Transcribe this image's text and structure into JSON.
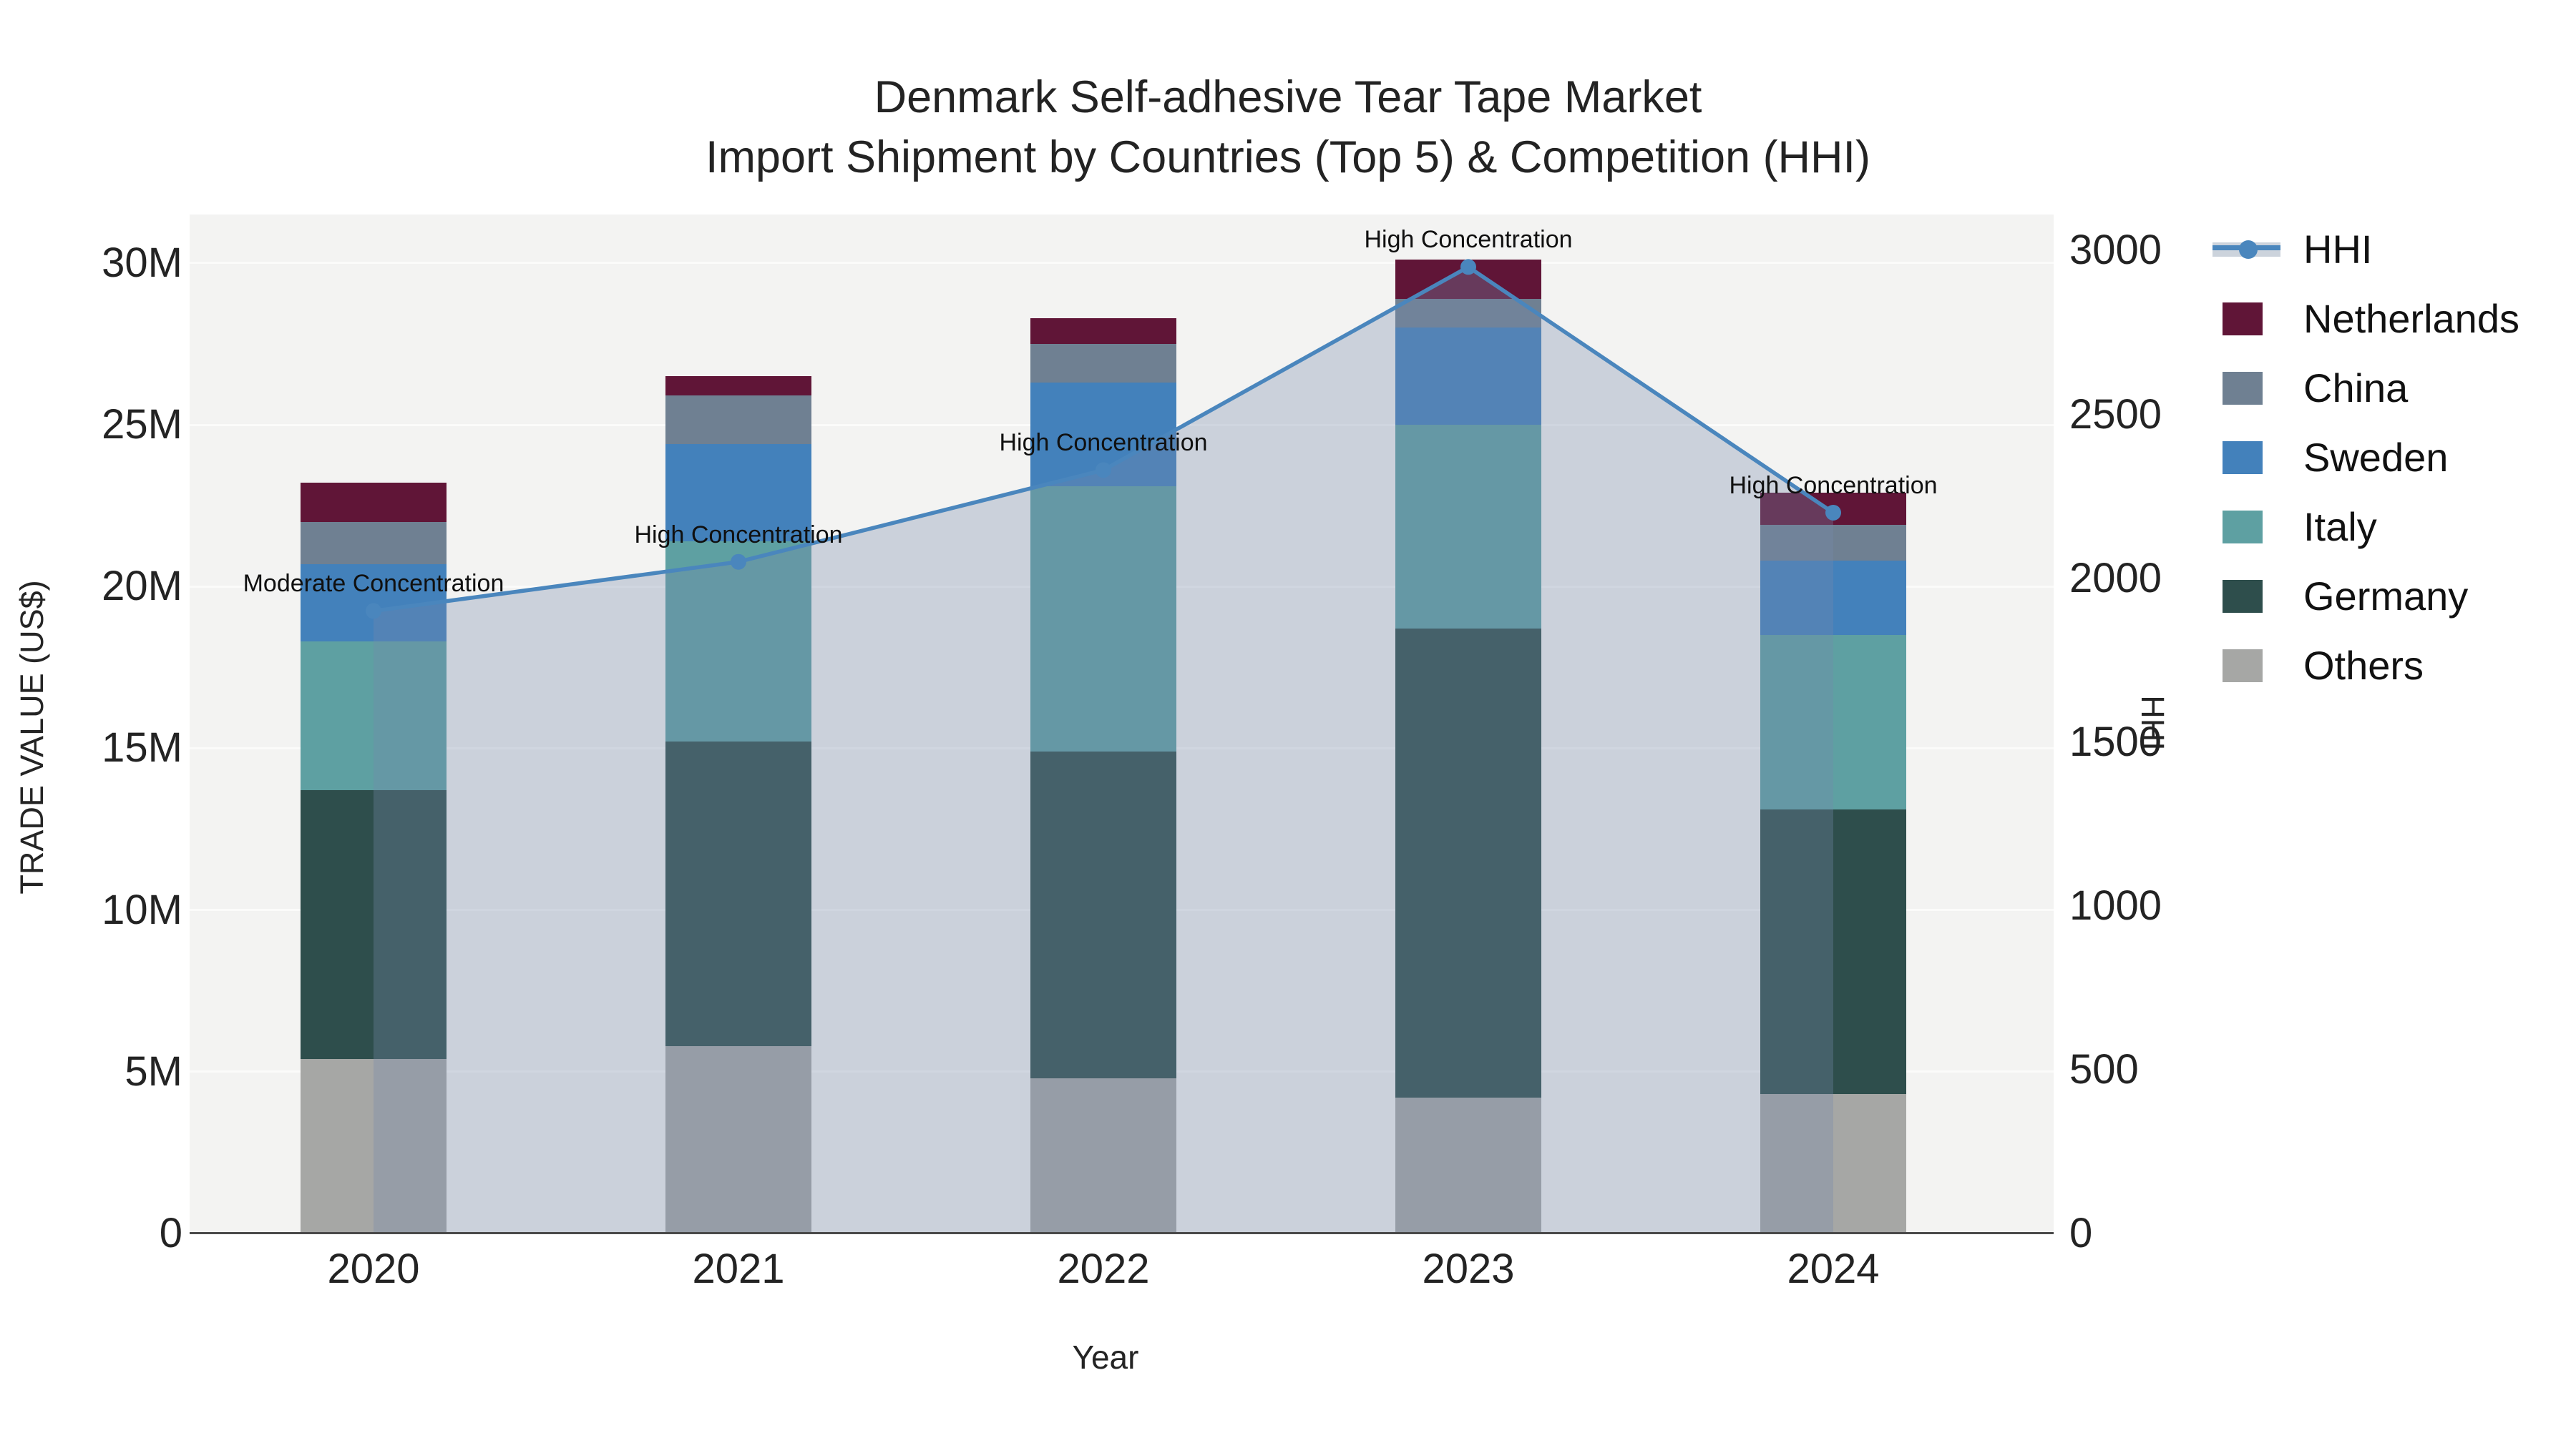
{
  "chart_data": {
    "type": "bar",
    "subtype": "stacked-bars-with-line-area",
    "title_line1": "Denmark Self-adhesive Tear Tape Market",
    "title_line2": "Import Shipment by Countries (Top 5) & Competition (HHI)",
    "xlabel": "Year",
    "ylabel_left": "TRADE VALUE (US$)",
    "ylabel_right": "HHI",
    "bar_unit": "million US$",
    "categories": [
      "2020",
      "2021",
      "2022",
      "2023",
      "2024"
    ],
    "series": [
      {
        "name": "Netherlands",
        "color": "#601537",
        "values": [
          1.2,
          0.6,
          0.8,
          1.2,
          1.0
        ]
      },
      {
        "name": "China",
        "color": "#6f8092",
        "values": [
          1.3,
          1.5,
          1.2,
          0.9,
          1.1
        ]
      },
      {
        "name": "Sweden",
        "color": "#4381bb",
        "values": [
          2.4,
          3.0,
          3.2,
          3.0,
          2.3
        ]
      },
      {
        "name": "Italy",
        "color": "#5ea0a2",
        "values": [
          4.6,
          6.2,
          8.2,
          6.3,
          5.4
        ]
      },
      {
        "name": "Germany",
        "color": "#2e4e4c",
        "values": [
          8.3,
          9.4,
          10.1,
          14.5,
          8.8
        ]
      },
      {
        "name": "Others",
        "color": "#a6a7a5",
        "values": [
          5.4,
          5.8,
          4.8,
          4.2,
          4.3
        ]
      }
    ],
    "stack_order_bottom_to_top": [
      "Others",
      "Germany",
      "Italy",
      "Sweden",
      "China",
      "Netherlands"
    ],
    "bar_totals": [
      23.2,
      26.5,
      28.3,
      30.1,
      22.9
    ],
    "line_series": {
      "name": "HHI",
      "color": "#4a86bd",
      "area_fill": "rgba(117,137,170,0.32)",
      "values": [
        1900,
        2050,
        2330,
        2950,
        2200
      ]
    },
    "annotations": [
      {
        "category": "2020",
        "text": "Moderate Concentration"
      },
      {
        "category": "2021",
        "text": "High Concentration"
      },
      {
        "category": "2022",
        "text": "High Concentration"
      },
      {
        "category": "2023",
        "text": "High Concentration"
      },
      {
        "category": "2024",
        "text": "High Concentration"
      }
    ],
    "yticks_left": [
      {
        "label": "0",
        "value": 0
      },
      {
        "label": "5M",
        "value": 5
      },
      {
        "label": "10M",
        "value": 10
      },
      {
        "label": "15M",
        "value": 15
      },
      {
        "label": "20M",
        "value": 20
      },
      {
        "label": "25M",
        "value": 25
      },
      {
        "label": "30M",
        "value": 30
      }
    ],
    "yticks_right": [
      {
        "label": "0",
        "value": 0
      },
      {
        "label": "500",
        "value": 500
      },
      {
        "label": "1000",
        "value": 1000
      },
      {
        "label": "1500",
        "value": 1500
      },
      {
        "label": "2000",
        "value": 2000
      },
      {
        "label": "2500",
        "value": 2500
      },
      {
        "label": "3000",
        "value": 3000
      }
    ],
    "ylim_left": [
      0,
      31.5
    ],
    "ylim_right": [
      0,
      3110
    ],
    "grid": true,
    "legend_position": "right",
    "legend": [
      {
        "label": "HHI",
        "swatch": "line",
        "color": "#4a86bd",
        "band_color": "#ccd3dc"
      },
      {
        "label": "Netherlands",
        "swatch": "square",
        "color": "#601537"
      },
      {
        "label": "China",
        "swatch": "square",
        "color": "#6f8092"
      },
      {
        "label": "Sweden",
        "swatch": "square",
        "color": "#4381bb"
      },
      {
        "label": "Italy",
        "swatch": "square",
        "color": "#5ea0a2"
      },
      {
        "label": "Germany",
        "swatch": "square",
        "color": "#2e4e4c"
      },
      {
        "label": "Others",
        "swatch": "square",
        "color": "#a6a7a5"
      }
    ],
    "colors": {
      "plot_background": "#f3f3f2",
      "gridline": "#fbfbfa",
      "axis_line": "#4a4a4a",
      "text": "#232323"
    }
  }
}
